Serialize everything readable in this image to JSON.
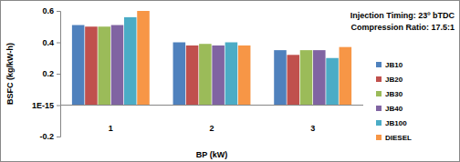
{
  "chart_data": {
    "type": "bar",
    "x_label": "BP (kW)",
    "y_label": "BSFC (kg/kW-h)",
    "annotations": [
      "Injection Timing: 23º bTDC",
      "Compression Ratio: 17.5:1"
    ],
    "categories": [
      "1",
      "2",
      "3"
    ],
    "series": [
      {
        "name": "JB10",
        "color": "#4f81bd",
        "values": [
          0.51,
          0.4,
          0.35
        ]
      },
      {
        "name": "JB20",
        "color": "#c0504d",
        "values": [
          0.5,
          0.38,
          0.32
        ]
      },
      {
        "name": "JB30",
        "color": "#9bbb59",
        "values": [
          0.5,
          0.39,
          0.35
        ]
      },
      {
        "name": "JB40",
        "color": "#8064a2",
        "values": [
          0.51,
          0.38,
          0.35
        ]
      },
      {
        "name": "JB100",
        "color": "#4bacc6",
        "values": [
          0.56,
          0.4,
          0.3
        ]
      },
      {
        "name": "DIESEL",
        "color": "#f79646",
        "values": [
          0.6,
          0.38,
          0.37
        ]
      }
    ],
    "ylim": [
      -0.2,
      0.6
    ],
    "yticks": [
      -0.2,
      {
        "value": 1e-15,
        "label": "1E-15"
      },
      0.2,
      0.4,
      0.6
    ],
    "grid": false,
    "legend": "right"
  }
}
